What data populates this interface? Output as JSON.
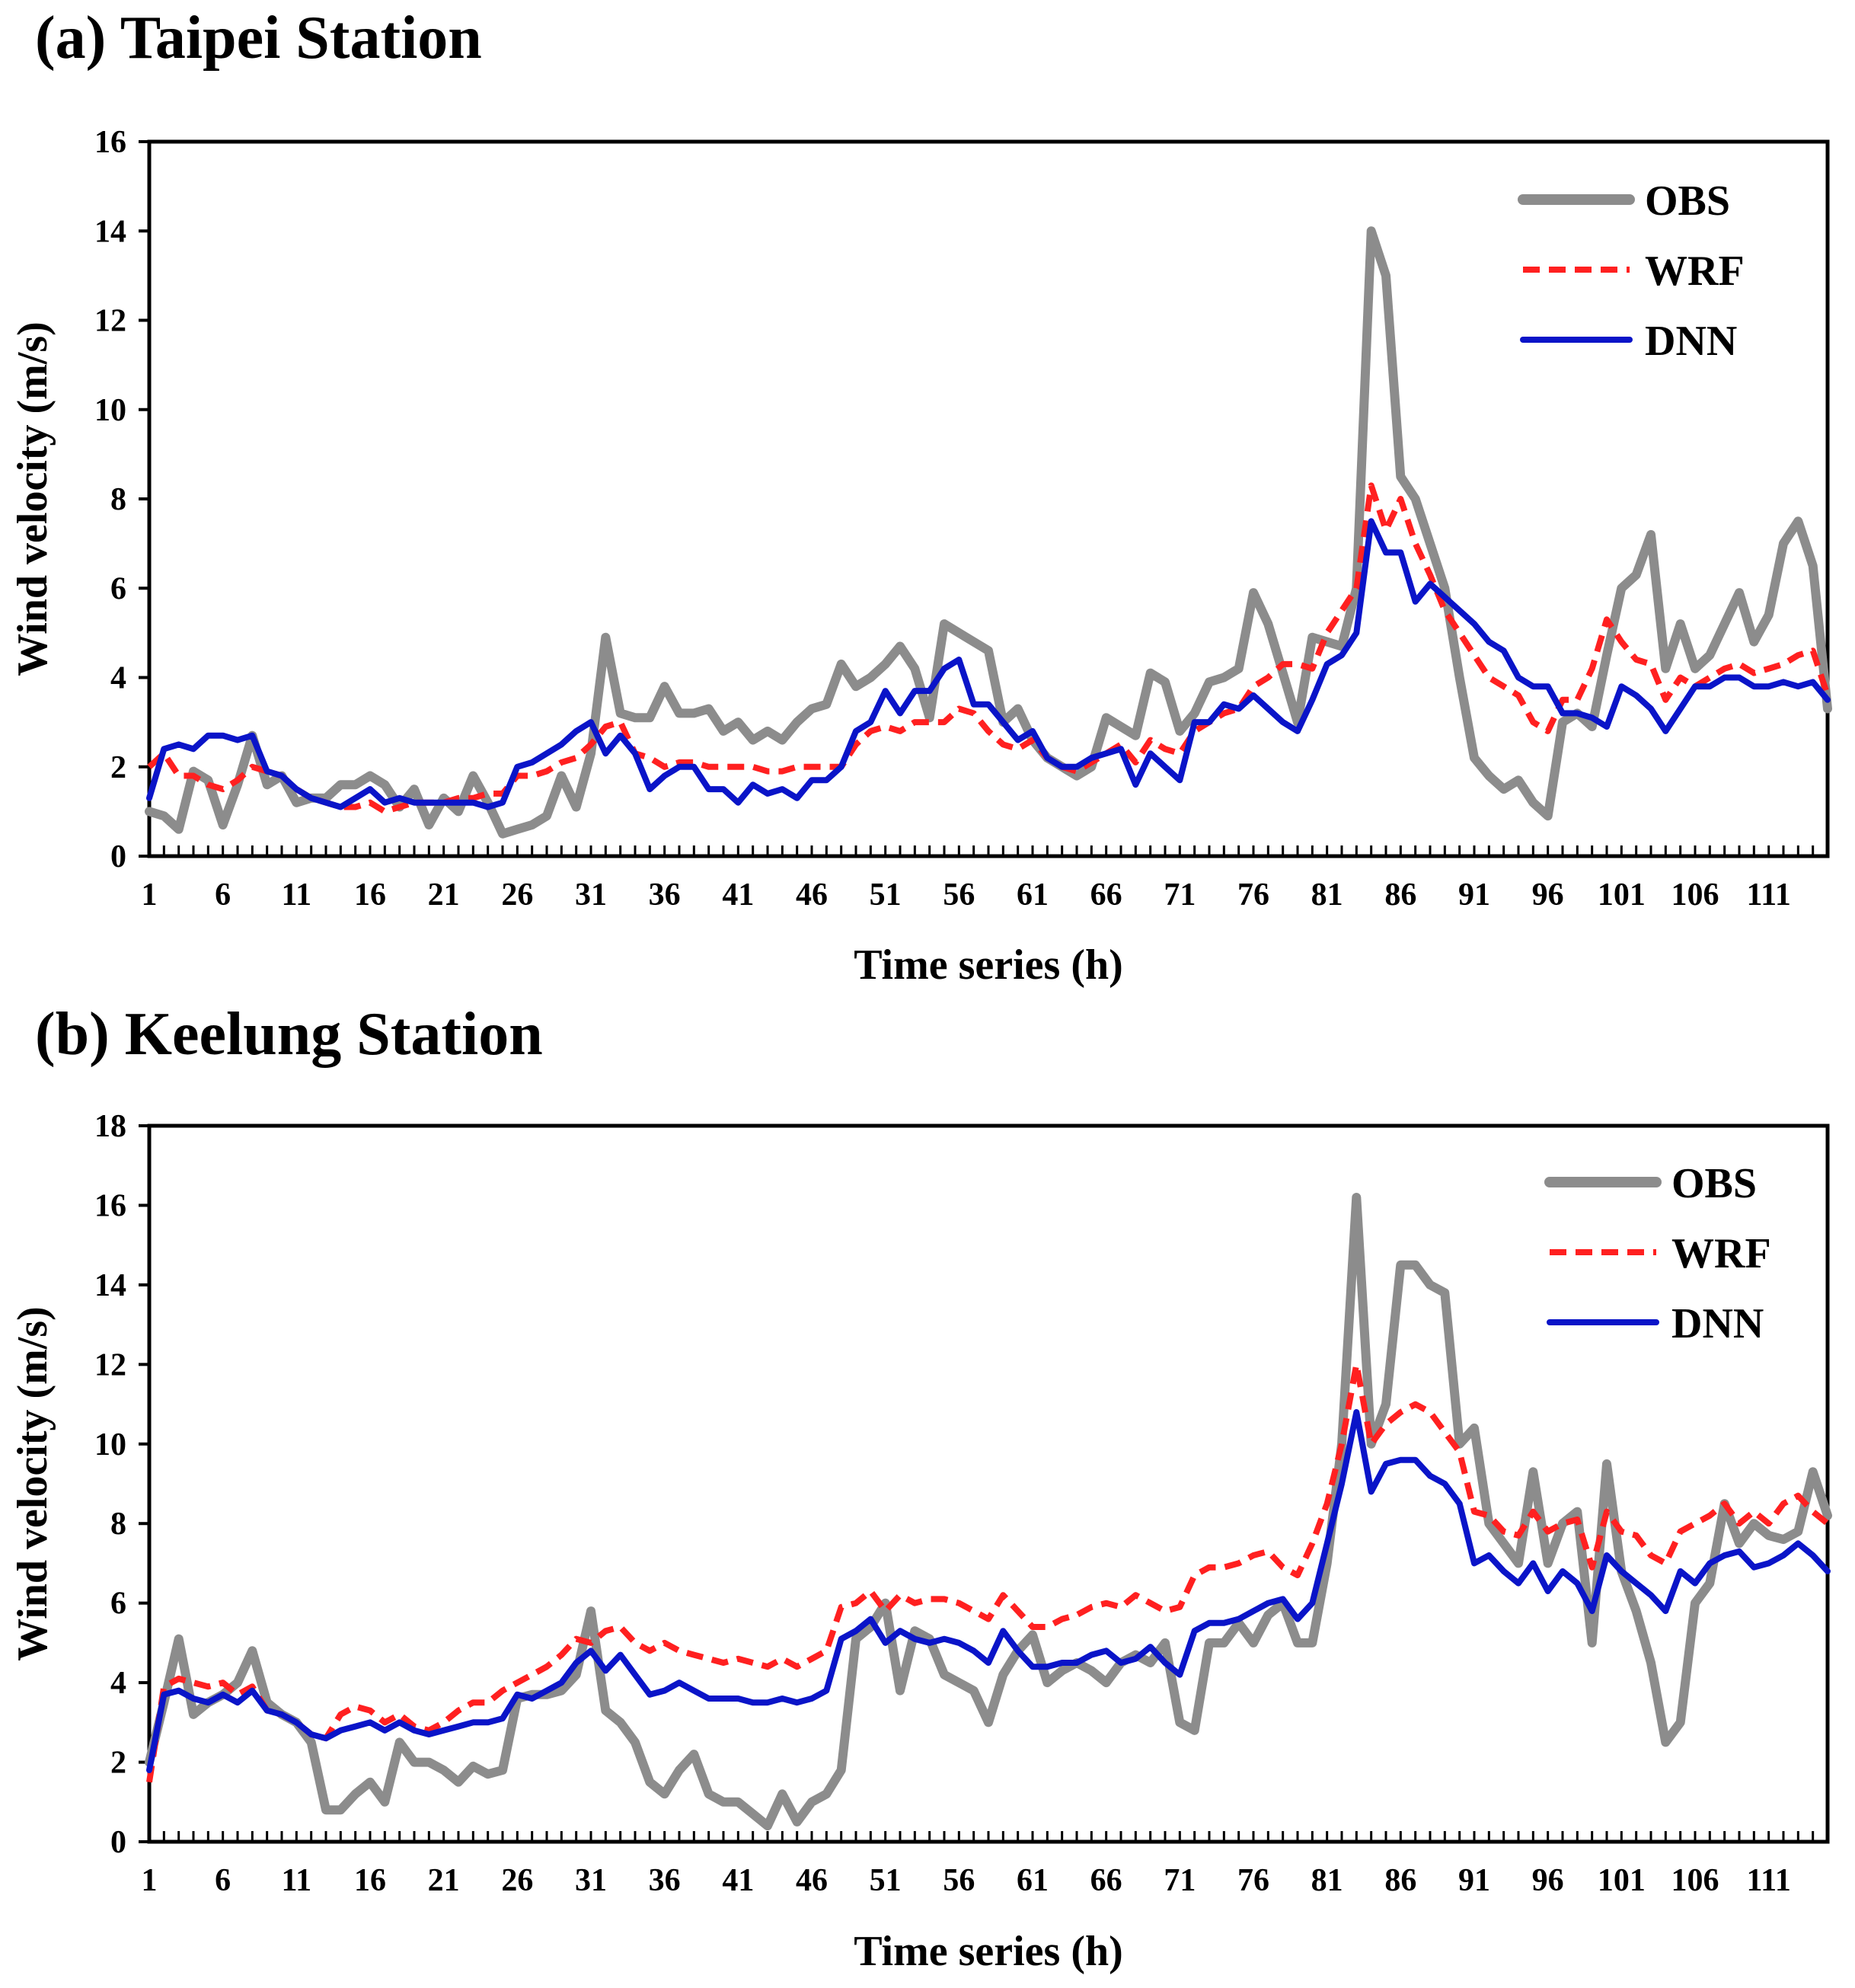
{
  "chart_data": [
    {
      "type": "line",
      "title": "(a) Taipei Station",
      "xlabel": "Time series (h)",
      "ylabel": "Wind velocity (m/s)",
      "xlim": [
        1,
        115
      ],
      "ylim": [
        0,
        16
      ],
      "yticks": [
        "0",
        "2",
        "4",
        "6",
        "8",
        "10",
        "12",
        "14",
        "16"
      ],
      "xticks": [
        "1",
        "6",
        "11",
        "16",
        "21",
        "26",
        "31",
        "36",
        "41",
        "46",
        "51",
        "56",
        "61",
        "66",
        "71",
        "76",
        "81",
        "86",
        "91",
        "96",
        "101",
        "106",
        "111"
      ],
      "legend_position": "top-right",
      "x": [
        1,
        2,
        3,
        4,
        5,
        6,
        7,
        8,
        9,
        10,
        11,
        12,
        13,
        14,
        15,
        16,
        17,
        18,
        19,
        20,
        21,
        22,
        23,
        24,
        25,
        26,
        27,
        28,
        29,
        30,
        31,
        32,
        33,
        34,
        35,
        36,
        37,
        38,
        39,
        40,
        41,
        42,
        43,
        44,
        45,
        46,
        47,
        48,
        49,
        50,
        51,
        52,
        53,
        54,
        55,
        56,
        57,
        58,
        59,
        60,
        61,
        62,
        63,
        64,
        65,
        66,
        67,
        68,
        69,
        70,
        71,
        72,
        73,
        74,
        75,
        76,
        77,
        78,
        79,
        80,
        81,
        82,
        83,
        84,
        85,
        86,
        87,
        88,
        89,
        90,
        91,
        92,
        93,
        94,
        95,
        96,
        97,
        98,
        99,
        100,
        101,
        102,
        103,
        104,
        105,
        106,
        107,
        108,
        109,
        110,
        111,
        112,
        113,
        114,
        115
      ],
      "series": [
        {
          "name": "OBS",
          "color": "#8c8c8c",
          "style": "solid",
          "values": [
            1.0,
            0.9,
            0.6,
            1.9,
            1.7,
            0.7,
            1.6,
            2.7,
            1.6,
            1.8,
            1.2,
            1.3,
            1.3,
            1.6,
            1.6,
            1.8,
            1.6,
            1.1,
            1.5,
            0.7,
            1.3,
            1.0,
            1.8,
            1.2,
            0.5,
            0.6,
            0.7,
            0.9,
            1.8,
            1.1,
            2.3,
            4.9,
            3.2,
            3.1,
            3.1,
            3.8,
            3.2,
            3.2,
            3.3,
            2.8,
            3.0,
            2.6,
            2.8,
            2.6,
            3.0,
            3.3,
            3.4,
            4.3,
            3.8,
            4.0,
            4.3,
            4.7,
            4.2,
            3.1,
            5.2,
            5.0,
            4.8,
            4.6,
            3.0,
            3.3,
            2.6,
            2.2,
            2.0,
            1.8,
            2.0,
            3.1,
            2.9,
            2.7,
            4.1,
            3.9,
            2.8,
            3.2,
            3.9,
            4.0,
            4.2,
            5.9,
            5.2,
            4.1,
            3.0,
            4.9,
            4.8,
            4.7,
            6.0,
            14.0,
            13.0,
            8.5,
            8.0,
            7.0,
            6.0,
            4.0,
            2.2,
            1.8,
            1.5,
            1.7,
            1.2,
            0.9,
            3.0,
            3.2,
            2.9,
            4.5,
            6.0,
            6.3,
            7.2,
            4.2,
            5.2,
            4.2,
            4.5,
            5.2,
            5.9,
            4.8,
            5.4,
            7.0,
            7.5,
            6.5,
            3.3
          ]
        },
        {
          "name": "WRF",
          "color": "#ff2020",
          "style": "dashed",
          "values": [
            2.0,
            2.3,
            1.8,
            1.8,
            1.6,
            1.5,
            1.7,
            2.0,
            1.9,
            1.8,
            1.5,
            1.3,
            1.2,
            1.1,
            1.1,
            1.2,
            1.0,
            1.1,
            1.2,
            1.2,
            1.2,
            1.3,
            1.3,
            1.4,
            1.4,
            1.8,
            1.8,
            1.9,
            2.1,
            2.2,
            2.5,
            2.9,
            3.0,
            2.3,
            2.2,
            2.0,
            2.1,
            2.1,
            2.0,
            2.0,
            2.0,
            2.0,
            1.9,
            1.9,
            2.0,
            2.0,
            2.0,
            2.0,
            2.5,
            2.8,
            2.9,
            2.8,
            3.0,
            3.0,
            3.0,
            3.3,
            3.2,
            2.8,
            2.5,
            2.4,
            2.6,
            2.2,
            2.0,
            1.9,
            2.1,
            2.3,
            2.5,
            2.1,
            2.6,
            2.4,
            2.3,
            2.8,
            3.0,
            3.2,
            3.3,
            3.8,
            4.0,
            4.3,
            4.3,
            4.2,
            5.0,
            5.5,
            6.0,
            8.3,
            7.3,
            8.0,
            7.0,
            6.3,
            5.5,
            5.0,
            4.5,
            4.0,
            3.8,
            3.6,
            3.0,
            2.8,
            3.5,
            3.5,
            4.2,
            5.3,
            4.8,
            4.4,
            4.3,
            3.5,
            4.0,
            3.8,
            4.0,
            4.2,
            4.3,
            4.1,
            4.2,
            4.3,
            4.5,
            4.6,
            3.6
          ]
        },
        {
          "name": "DNN",
          "color": "#0a14c8",
          "style": "solid",
          "values": [
            1.3,
            2.4,
            2.5,
            2.4,
            2.7,
            2.7,
            2.6,
            2.7,
            1.9,
            1.8,
            1.5,
            1.3,
            1.2,
            1.1,
            1.3,
            1.5,
            1.2,
            1.3,
            1.2,
            1.2,
            1.2,
            1.2,
            1.2,
            1.1,
            1.2,
            2.0,
            2.1,
            2.3,
            2.5,
            2.8,
            3.0,
            2.3,
            2.7,
            2.3,
            1.5,
            1.8,
            2.0,
            2.0,
            1.5,
            1.5,
            1.2,
            1.6,
            1.4,
            1.5,
            1.3,
            1.7,
            1.7,
            2.0,
            2.8,
            3.0,
            3.7,
            3.2,
            3.7,
            3.7,
            4.2,
            4.4,
            3.4,
            3.4,
            3.0,
            2.6,
            2.8,
            2.2,
            2.0,
            2.0,
            2.2,
            2.3,
            2.4,
            1.6,
            2.3,
            2.0,
            1.7,
            3.0,
            3.0,
            3.4,
            3.3,
            3.6,
            3.3,
            3.0,
            2.8,
            3.5,
            4.3,
            4.5,
            5.0,
            7.5,
            6.8,
            6.8,
            5.7,
            6.1,
            5.8,
            5.5,
            5.2,
            4.8,
            4.6,
            4.0,
            3.8,
            3.8,
            3.2,
            3.2,
            3.1,
            2.9,
            3.8,
            3.6,
            3.3,
            2.8,
            3.3,
            3.8,
            3.8,
            4.0,
            4.0,
            3.8,
            3.8,
            3.9,
            3.8,
            3.9,
            3.5
          ]
        }
      ]
    },
    {
      "type": "line",
      "title": "(b) Keelung Station",
      "xlabel": "Time series (h)",
      "ylabel": "Wind velocity (m/s)",
      "xlim": [
        1,
        115
      ],
      "ylim": [
        0,
        18
      ],
      "yticks": [
        "0",
        "2",
        "4",
        "6",
        "8",
        "10",
        "12",
        "14",
        "16",
        "18"
      ],
      "xticks": [
        "1",
        "6",
        "11",
        "16",
        "21",
        "26",
        "31",
        "36",
        "41",
        "46",
        "51",
        "56",
        "61",
        "66",
        "71",
        "76",
        "81",
        "86",
        "91",
        "96",
        "101",
        "106",
        "111"
      ],
      "legend_position": "top-right",
      "x": [
        1,
        2,
        3,
        4,
        5,
        6,
        7,
        8,
        9,
        10,
        11,
        12,
        13,
        14,
        15,
        16,
        17,
        18,
        19,
        20,
        21,
        22,
        23,
        24,
        25,
        26,
        27,
        28,
        29,
        30,
        31,
        32,
        33,
        34,
        35,
        36,
        37,
        38,
        39,
        40,
        41,
        42,
        43,
        44,
        45,
        46,
        47,
        48,
        49,
        50,
        51,
        52,
        53,
        54,
        55,
        56,
        57,
        58,
        59,
        60,
        61,
        62,
        63,
        64,
        65,
        66,
        67,
        68,
        69,
        70,
        71,
        72,
        73,
        74,
        75,
        76,
        77,
        78,
        79,
        80,
        81,
        82,
        83,
        84,
        85,
        86,
        87,
        88,
        89,
        90,
        91,
        92,
        93,
        94,
        95,
        96,
        97,
        98,
        99,
        100,
        101,
        102,
        103,
        104,
        105,
        106,
        107,
        108,
        109,
        110,
        111,
        112,
        113,
        114,
        115
      ],
      "series": [
        {
          "name": "OBS",
          "color": "#8c8c8c",
          "style": "solid",
          "values": [
            2.0,
            3.5,
            5.1,
            3.2,
            3.5,
            3.7,
            4.0,
            4.8,
            3.5,
            3.2,
            3.0,
            2.5,
            0.8,
            0.8,
            1.2,
            1.5,
            1.0,
            2.5,
            2.0,
            2.0,
            1.8,
            1.5,
            1.9,
            1.7,
            1.8,
            3.6,
            3.7,
            3.7,
            3.8,
            4.2,
            5.8,
            3.3,
            3.0,
            2.5,
            1.5,
            1.2,
            1.8,
            2.2,
            1.2,
            1.0,
            1.0,
            0.7,
            0.4,
            1.2,
            0.5,
            1.0,
            1.2,
            1.8,
            5.1,
            5.4,
            6.0,
            3.8,
            5.3,
            5.1,
            4.2,
            4.0,
            3.8,
            3.0,
            4.2,
            4.8,
            5.2,
            4.0,
            4.3,
            4.5,
            4.3,
            4.0,
            4.5,
            4.7,
            4.5,
            5.0,
            3.0,
            2.8,
            5.0,
            5.0,
            5.5,
            5.0,
            5.7,
            6.0,
            5.0,
            5.0,
            7.0,
            10.0,
            16.2,
            10.0,
            11.0,
            14.5,
            14.5,
            14.0,
            13.8,
            10.0,
            10.4,
            8.0,
            7.5,
            7.0,
            9.3,
            7.0,
            8.0,
            8.3,
            5.0,
            9.5,
            6.8,
            5.8,
            4.5,
            2.5,
            3.0,
            6.0,
            6.5,
            8.5,
            7.5,
            8.0,
            7.7,
            7.6,
            7.8,
            9.3,
            8.2
          ]
        },
        {
          "name": "WRF",
          "color": "#ff2020",
          "style": "dashed",
          "values": [
            1.5,
            3.9,
            4.1,
            4.0,
            3.9,
            4.0,
            3.7,
            3.9,
            3.3,
            3.2,
            3.0,
            2.7,
            2.6,
            3.2,
            3.4,
            3.3,
            3.0,
            3.2,
            2.9,
            2.8,
            3.0,
            3.3,
            3.5,
            3.5,
            3.8,
            4.0,
            4.2,
            4.4,
            4.7,
            5.1,
            5.0,
            5.3,
            5.4,
            5.0,
            4.8,
            5.0,
            4.8,
            4.7,
            4.6,
            4.5,
            4.6,
            4.5,
            4.4,
            4.6,
            4.4,
            4.6,
            4.8,
            5.9,
            6.0,
            6.3,
            5.8,
            6.2,
            6.0,
            6.1,
            6.1,
            6.0,
            5.8,
            5.6,
            6.2,
            5.8,
            5.4,
            5.4,
            5.6,
            5.7,
            5.9,
            6.0,
            5.9,
            6.2,
            6.0,
            5.8,
            5.9,
            6.7,
            6.9,
            6.9,
            7.0,
            7.2,
            7.3,
            6.9,
            6.7,
            7.5,
            8.5,
            10.0,
            12.0,
            10.0,
            10.5,
            10.8,
            11.0,
            10.8,
            10.3,
            9.8,
            8.3,
            8.2,
            7.8,
            7.7,
            8.3,
            7.8,
            8.0,
            8.1,
            6.9,
            8.3,
            7.8,
            7.7,
            7.2,
            7.0,
            7.8,
            8.0,
            8.2,
            8.5,
            8.0,
            8.3,
            8.0,
            8.5,
            8.7,
            8.3,
            8.0
          ]
        },
        {
          "name": "DNN",
          "color": "#0a14c8",
          "style": "solid",
          "values": [
            1.8,
            3.7,
            3.8,
            3.6,
            3.5,
            3.7,
            3.5,
            3.8,
            3.3,
            3.2,
            3.0,
            2.7,
            2.6,
            2.8,
            2.9,
            3.0,
            2.8,
            3.0,
            2.8,
            2.7,
            2.8,
            2.9,
            3.0,
            3.0,
            3.1,
            3.7,
            3.6,
            3.8,
            4.0,
            4.5,
            4.8,
            4.3,
            4.7,
            4.2,
            3.7,
            3.8,
            4.0,
            3.8,
            3.6,
            3.6,
            3.6,
            3.5,
            3.5,
            3.6,
            3.5,
            3.6,
            3.8,
            5.1,
            5.3,
            5.6,
            5.0,
            5.3,
            5.1,
            5.0,
            5.1,
            5.0,
            4.8,
            4.5,
            5.3,
            4.8,
            4.4,
            4.4,
            4.5,
            4.5,
            4.7,
            4.8,
            4.5,
            4.6,
            4.9,
            4.5,
            4.2,
            5.3,
            5.5,
            5.5,
            5.6,
            5.8,
            6.0,
            6.1,
            5.6,
            6.0,
            7.5,
            9.0,
            10.8,
            8.8,
            9.5,
            9.6,
            9.6,
            9.2,
            9.0,
            8.5,
            7.0,
            7.2,
            6.8,
            6.5,
            7.0,
            6.3,
            6.8,
            6.5,
            5.8,
            7.2,
            6.8,
            6.5,
            6.2,
            5.8,
            6.8,
            6.5,
            7.0,
            7.2,
            7.3,
            6.9,
            7.0,
            7.2,
            7.5,
            7.2,
            6.8
          ]
        }
      ]
    }
  ]
}
